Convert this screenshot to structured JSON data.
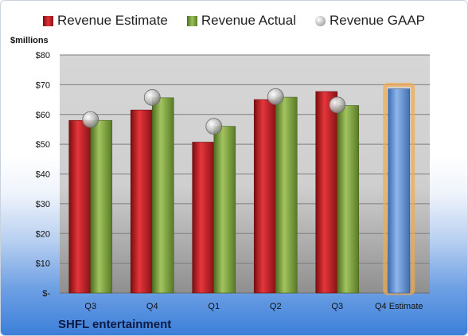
{
  "chart_data": {
    "type": "bar",
    "title": "",
    "ylabel": "$millions",
    "footer": "SHFL entertainment",
    "categories": [
      "Q3",
      "Q4",
      "Q1",
      "Q2",
      "Q3",
      "Q4 Estimate"
    ],
    "ylim": [
      0,
      80
    ],
    "yticks": [
      "$-",
      "$10",
      "$20",
      "$30",
      "$40",
      "$50",
      "$60",
      "$70",
      "$80"
    ],
    "grid": true,
    "legend_position": "top",
    "series": [
      {
        "name": "Revenue Estimate",
        "type": "bar",
        "color": "#c8232b",
        "values": [
          58,
          61.5,
          50.7,
          65,
          67.7,
          null
        ]
      },
      {
        "name": "Revenue Actual",
        "type": "bar",
        "color": "#7ea33f",
        "values": [
          58,
          65.6,
          56,
          65.8,
          63,
          null
        ]
      },
      {
        "name": "Revenue GAAP",
        "type": "marker",
        "color": "#b0b0b0",
        "values": [
          58.3,
          65.7,
          56,
          66,
          63.2,
          null
        ]
      },
      {
        "name": "Q4 Estimate",
        "type": "bar",
        "color": "#5b8fd6",
        "highlight": "#f5a94a",
        "values": [
          null,
          null,
          null,
          null,
          null,
          68.6
        ]
      }
    ]
  }
}
